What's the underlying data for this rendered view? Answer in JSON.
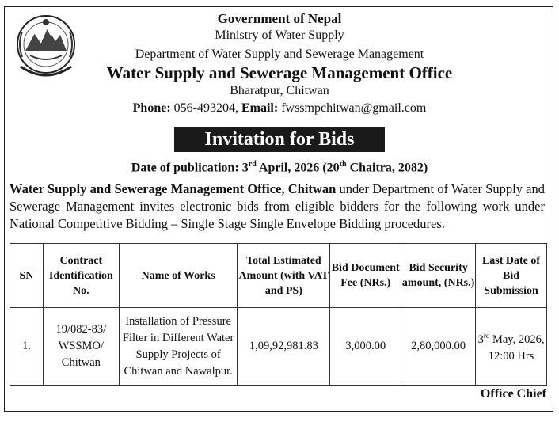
{
  "header": {
    "government": "Government of Nepal",
    "ministry": "Ministry of Water Supply",
    "department": "Department of Water Supply and Sewerage Management",
    "office": "Water Supply and Sewerage Management Office",
    "location": "Bharatpur, Chitwan",
    "phone_label": "Phone:",
    "phone": "056-493204,",
    "email_label": "Email:",
    "email": "fwssmpchitwan@gmail.com"
  },
  "notice": {
    "title": "Invitation for Bids",
    "pub_label": "Date of publication: 3",
    "pub_sup1": "rd",
    "pub_mid": " April, 2026 (20",
    "pub_sup2": "th",
    "pub_end": " Chaitra, 2082)",
    "intro_lead": "Water Supply and Sewerage Management Office, Chitwan",
    "intro_rest": " under Department of Water Supply and Sewerage Management invites electronic bids from eligible bidders for the following work under National Competitive Bidding – Single Stage Single Envelope Bidding procedures."
  },
  "table": {
    "headers": {
      "sn": "SN",
      "contract": "Contract Identification No.",
      "works": "Name of Works",
      "amount": "Total Estimated Amount (with VAT and PS)",
      "fee": "Bid Document Fee (NRs.)",
      "security": "Bid Security amount, (NRs.)",
      "last_date": "Last Date of Bid Submission"
    },
    "rows": [
      {
        "sn": "1.",
        "contract": "19/082-83/ WSSMO/ Chitwan",
        "works": "Installation of Pressure Filter in Different Water Supply Projects of Chitwan and Nawalpur.",
        "amount": "1,09,92,981.83",
        "fee": "3,000.00",
        "security": "2,80,000.00",
        "date_day": "3",
        "date_sup": "rd",
        "date_rest": " May, 2026,",
        "time": "12:00 Hrs"
      }
    ]
  },
  "signature": "Office Chief"
}
